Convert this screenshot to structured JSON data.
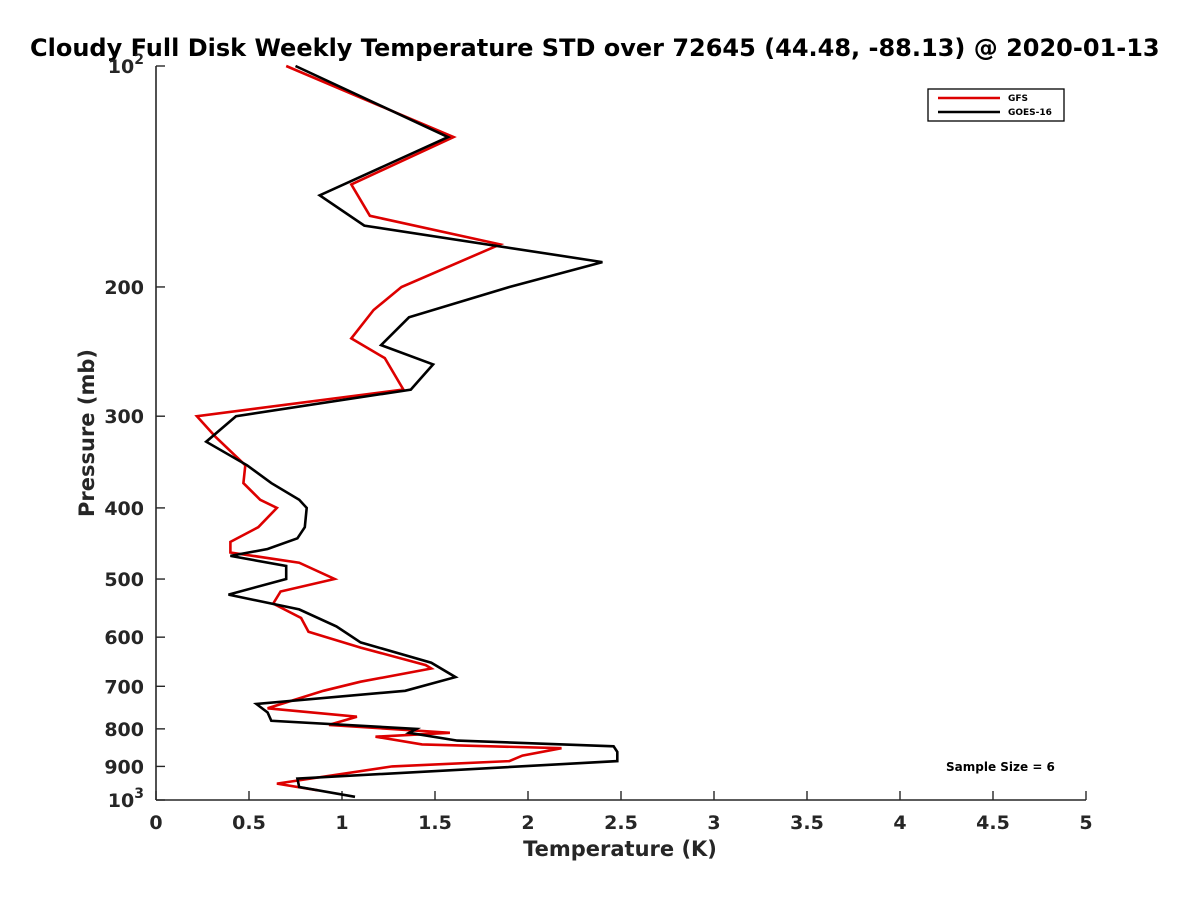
{
  "chart_data": {
    "type": "line",
    "title": "Cloudy Full Disk Weekly Temperature STD over 72645 (44.48, -88.13) @ 2020-01-13",
    "xlabel": "Temperature (K)",
    "ylabel": "Pressure (mb)",
    "xlim": [
      0,
      5
    ],
    "ylim": [
      1000,
      100
    ],
    "y_scale": "log",
    "y_reversed": true,
    "x_ticks": [
      "0",
      "0.5",
      "1",
      "1.5",
      "2",
      "2.5",
      "3",
      "3.5",
      "4",
      "4.5",
      "5"
    ],
    "y_ticks": [
      {
        "value": 100,
        "label": "10",
        "sup": "2"
      },
      {
        "value": 200,
        "label": "200"
      },
      {
        "value": 300,
        "label": "300"
      },
      {
        "value": 400,
        "label": "400"
      },
      {
        "value": 500,
        "label": "500"
      },
      {
        "value": 600,
        "label": "600"
      },
      {
        "value": 700,
        "label": "700"
      },
      {
        "value": 800,
        "label": "800"
      },
      {
        "value": 900,
        "label": "900"
      },
      {
        "value": 1000,
        "label": "10",
        "sup": "3"
      }
    ],
    "legend_position": "top-right",
    "grid": false,
    "annotation": "Sample Size = 6",
    "series": [
      {
        "name": "GFS",
        "color": "#dd0000",
        "x": [
          0.7,
          1.6,
          1.05,
          1.15,
          1.85,
          1.32,
          1.17,
          1.05,
          1.23,
          1.33,
          0.22,
          0.32,
          0.48,
          0.47,
          0.56,
          0.65,
          0.55,
          0.4,
          0.4,
          0.77,
          0.96,
          0.67,
          0.63,
          0.78,
          0.82,
          1.1,
          1.45,
          1.48,
          1.1,
          0.9,
          0.6,
          1.08,
          0.93,
          1.58,
          1.18,
          1.43,
          2.18,
          1.97,
          1.9,
          1.27,
          0.65,
          0.87
        ],
        "y": [
          100,
          125,
          145,
          160,
          175,
          200,
          215,
          235,
          250,
          276,
          300,
          320,
          350,
          370,
          390,
          400,
          425,
          445,
          460,
          475,
          500,
          520,
          540,
          565,
          590,
          620,
          655,
          662,
          690,
          710,
          750,
          770,
          790,
          810,
          820,
          840,
          850,
          870,
          885,
          900,
          950,
          970
        ]
      },
      {
        "name": "GOES-16",
        "color": "#000000",
        "x": [
          0.75,
          1.57,
          0.88,
          1.12,
          2.4,
          1.9,
          1.36,
          1.21,
          1.49,
          1.37,
          0.43,
          0.27,
          0.49,
          0.62,
          0.77,
          0.81,
          0.8,
          0.76,
          0.6,
          0.4,
          0.7,
          0.7,
          0.39,
          0.77,
          0.97,
          1.1,
          1.48,
          1.61,
          1.34,
          0.54,
          0.6,
          0.62,
          1.4,
          1.36,
          1.62,
          2.46,
          2.48,
          2.48,
          0.76,
          0.77,
          1.07
        ],
        "y": [
          100,
          125,
          150,
          165,
          185,
          200,
          220,
          240,
          255,
          276,
          300,
          325,
          350,
          370,
          390,
          400,
          425,
          440,
          455,
          465,
          480,
          500,
          525,
          550,
          580,
          610,
          650,
          680,
          710,
          740,
          760,
          780,
          800,
          810,
          830,
          845,
          860,
          885,
          935,
          960,
          990
        ]
      }
    ]
  }
}
